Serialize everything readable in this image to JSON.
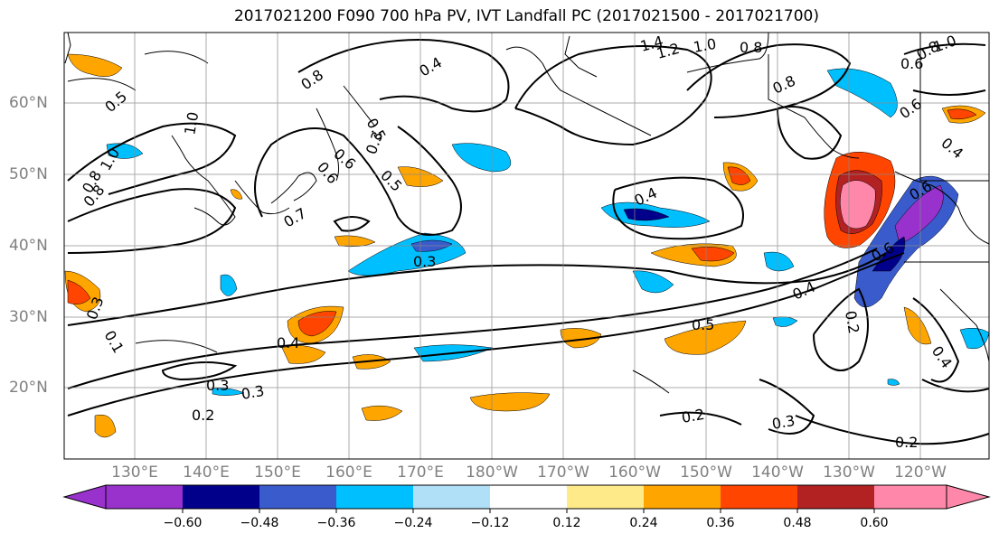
{
  "title": "2017021200 F090 700 hPa PV, IVT Landfall PC (2017021500 - 2017021700)",
  "map": {
    "latitude_labels": [
      "60°N",
      "50°N",
      "40°N",
      "30°N",
      "20°N"
    ],
    "longitude_labels": [
      "130°E",
      "140°E",
      "150°E",
      "160°E",
      "170°E",
      "180°W",
      "170°W",
      "160°W",
      "150°W",
      "140°W",
      "130°W",
      "120°W"
    ],
    "contour_labels": [
      "1.4",
      "1.2",
      "1.0",
      "0.8",
      "0.8",
      "0.6",
      "0.8",
      "0.6",
      "1.0",
      "0.8",
      "0.4",
      "0.8",
      "0.5",
      "1.0",
      "0.5",
      "0.3",
      "0.6",
      "0.5",
      "0.7",
      "0.4",
      "0.6",
      "0.6",
      "0.4",
      "0.3",
      "0.4",
      "0.5",
      "0.4",
      "0.2",
      "0.3",
      "0.3",
      "0.2",
      "0.2",
      "0.3",
      "0.2",
      "0.3",
      "0.4",
      "0.1",
      "0.8",
      "0.6",
      "1.0"
    ]
  },
  "colorbar": {
    "ticks": [
      "−0.60",
      "−0.48",
      "−0.36",
      "−0.24",
      "−0.12",
      "0.12",
      "0.24",
      "0.36",
      "0.48",
      "0.60"
    ],
    "colors": [
      "#9932cc",
      "#00008b",
      "#3a5bcc",
      "#00bfff",
      "#b0e0f8",
      "#ffffff",
      "#ffea8a",
      "#ffa500",
      "#ff4500",
      "#b22222",
      "#ff88aa"
    ]
  }
}
